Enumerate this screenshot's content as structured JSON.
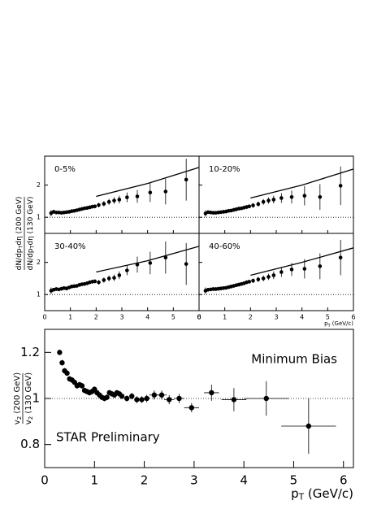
{
  "chart_data": [
    {
      "type": "scatter",
      "label": "0-5%",
      "ylabel_num": [
        {
          "text": "dN/dp"
        },
        {
          "text": "T",
          "sub": true
        },
        {
          "text": "dη (200 GeV)"
        }
      ],
      "ylabel_den": [
        {
          "text": "dN/dp"
        },
        {
          "text": "T",
          "sub": true
        },
        {
          "text": "dη (130 GeV)"
        }
      ],
      "xlim": [
        0,
        6
      ],
      "ylim": [
        0.5,
        2.9
      ],
      "yticks": [
        1,
        2
      ],
      "ref": 1,
      "x": [
        0.25,
        0.35,
        0.45,
        0.55,
        0.65,
        0.75,
        0.85,
        0.95,
        1.05,
        1.15,
        1.25,
        1.35,
        1.45,
        1.55,
        1.65,
        1.75,
        1.85,
        1.95,
        2.1,
        2.3,
        2.5,
        2.7,
        2.9,
        3.2,
        3.6,
        4.1,
        4.7,
        5.5
      ],
      "values": [
        1.13,
        1.17,
        1.15,
        1.15,
        1.14,
        1.15,
        1.16,
        1.17,
        1.19,
        1.2,
        1.22,
        1.24,
        1.26,
        1.28,
        1.29,
        1.31,
        1.33,
        1.34,
        1.38,
        1.42,
        1.48,
        1.52,
        1.55,
        1.62,
        1.65,
        1.77,
        1.8,
        2.17
      ],
      "yerr": [
        0.1,
        0.05,
        0.03,
        0.03,
        0.03,
        0.03,
        0.03,
        0.03,
        0.03,
        0.03,
        0.04,
        0.04,
        0.04,
        0.05,
        0.05,
        0.05,
        0.06,
        0.06,
        0.07,
        0.08,
        0.09,
        0.1,
        0.12,
        0.15,
        0.2,
        0.3,
        0.4,
        0.65
      ],
      "line": {
        "x": [
          2,
          4,
          6
        ],
        "values": [
          1.65,
          2.05,
          2.55
        ]
      }
    },
    {
      "type": "scatter",
      "label": "10-20%",
      "xlim": [
        0,
        6
      ],
      "ylim": [
        0.5,
        2.9
      ],
      "ref": 1,
      "x": [
        0.25,
        0.35,
        0.45,
        0.55,
        0.65,
        0.75,
        0.85,
        0.95,
        1.05,
        1.15,
        1.25,
        1.35,
        1.45,
        1.55,
        1.65,
        1.75,
        1.85,
        1.95,
        2.1,
        2.3,
        2.5,
        2.7,
        2.9,
        3.2,
        3.6,
        4.1,
        4.7,
        5.5
      ],
      "values": [
        1.12,
        1.16,
        1.15,
        1.14,
        1.14,
        1.15,
        1.16,
        1.17,
        1.18,
        1.2,
        1.21,
        1.23,
        1.25,
        1.27,
        1.28,
        1.3,
        1.32,
        1.34,
        1.37,
        1.41,
        1.48,
        1.52,
        1.55,
        1.6,
        1.63,
        1.67,
        1.63,
        1.98
      ],
      "yerr": [
        0.1,
        0.05,
        0.03,
        0.03,
        0.03,
        0.03,
        0.03,
        0.03,
        0.03,
        0.03,
        0.04,
        0.04,
        0.04,
        0.05,
        0.05,
        0.05,
        0.06,
        0.06,
        0.07,
        0.08,
        0.09,
        0.1,
        0.12,
        0.15,
        0.2,
        0.3,
        0.4,
        0.6
      ],
      "line": {
        "x": [
          2,
          4,
          6
        ],
        "values": [
          1.6,
          2.0,
          2.5
        ]
      }
    },
    {
      "type": "scatter",
      "label": "30-40%",
      "xlim": [
        0,
        6
      ],
      "ylim": [
        0.5,
        2.9
      ],
      "xticks": [
        0,
        1,
        2,
        3,
        4,
        5,
        6
      ],
      "yticks": [
        1,
        2
      ],
      "ref": 1,
      "x": [
        0.25,
        0.35,
        0.45,
        0.55,
        0.65,
        0.75,
        0.85,
        0.95,
        1.05,
        1.15,
        1.25,
        1.35,
        1.45,
        1.55,
        1.65,
        1.75,
        1.85,
        1.95,
        2.1,
        2.3,
        2.5,
        2.7,
        2.9,
        3.2,
        3.6,
        4.1,
        4.7,
        5.5
      ],
      "values": [
        1.12,
        1.15,
        1.17,
        1.16,
        1.18,
        1.2,
        1.19,
        1.22,
        1.25,
        1.26,
        1.27,
        1.3,
        1.32,
        1.33,
        1.35,
        1.38,
        1.4,
        1.41,
        1.38,
        1.45,
        1.5,
        1.52,
        1.6,
        1.75,
        1.93,
        1.98,
        2.15,
        1.95
      ],
      "yerr": [
        0.1,
        0.05,
        0.03,
        0.03,
        0.03,
        0.03,
        0.03,
        0.03,
        0.03,
        0.03,
        0.04,
        0.04,
        0.04,
        0.05,
        0.05,
        0.05,
        0.06,
        0.06,
        0.07,
        0.08,
        0.09,
        0.1,
        0.12,
        0.15,
        0.25,
        0.35,
        0.5,
        0.65
      ],
      "line": {
        "x": [
          2,
          4,
          6
        ],
        "values": [
          1.7,
          2.05,
          2.5
        ]
      }
    },
    {
      "type": "scatter",
      "label": "40-60%",
      "xlabel": [
        {
          "text": "p"
        },
        {
          "text": "T",
          "sub": true
        },
        {
          "text": " (GeV/c)"
        }
      ],
      "xlim": [
        0,
        6
      ],
      "ylim": [
        0.5,
        2.9
      ],
      "xticks": [
        0,
        1,
        2,
        3,
        4,
        5,
        6
      ],
      "ref": 1,
      "x": [
        0.25,
        0.35,
        0.45,
        0.55,
        0.65,
        0.75,
        0.85,
        0.95,
        1.05,
        1.15,
        1.25,
        1.35,
        1.45,
        1.55,
        1.65,
        1.75,
        1.85,
        1.95,
        2.1,
        2.3,
        2.5,
        2.7,
        2.9,
        3.2,
        3.6,
        4.1,
        4.7,
        5.5
      ],
      "values": [
        1.12,
        1.15,
        1.16,
        1.17,
        1.17,
        1.18,
        1.19,
        1.2,
        1.21,
        1.23,
        1.25,
        1.27,
        1.29,
        1.31,
        1.33,
        1.35,
        1.38,
        1.4,
        1.43,
        1.47,
        1.5,
        1.55,
        1.6,
        1.7,
        1.78,
        1.8,
        1.88,
        2.15
      ],
      "yerr": [
        0.1,
        0.05,
        0.03,
        0.03,
        0.03,
        0.03,
        0.03,
        0.03,
        0.03,
        0.03,
        0.04,
        0.04,
        0.04,
        0.05,
        0.05,
        0.05,
        0.06,
        0.06,
        0.07,
        0.08,
        0.09,
        0.1,
        0.12,
        0.15,
        0.2,
        0.3,
        0.4,
        0.55
      ],
      "line": {
        "x": [
          2,
          4,
          6
        ],
        "values": [
          1.6,
          2.0,
          2.45
        ]
      }
    },
    {
      "type": "scatter",
      "annotations": [
        "Minimum Bias",
        "STAR Preliminary"
      ],
      "xlabel": [
        {
          "text": "p"
        },
        {
          "text": "T",
          "sub": true
        },
        {
          "text": " (GeV/c)"
        }
      ],
      "ylabel_num": [
        {
          "text": "v"
        },
        {
          "text": "2",
          "sub": true
        },
        {
          "text": " (200 GeV)"
        }
      ],
      "ylabel_den": [
        {
          "text": "v"
        },
        {
          "text": "2",
          "sub": true
        },
        {
          "text": " (130 GeV)"
        }
      ],
      "xlim": [
        0,
        6.2
      ],
      "ylim": [
        0.7,
        1.3
      ],
      "xticks": [
        0,
        1,
        2,
        3,
        4,
        5,
        6
      ],
      "yticks": [
        0.8,
        1,
        1.2
      ],
      "ref": 1,
      "x": [
        0.3,
        0.35,
        0.4,
        0.45,
        0.5,
        0.55,
        0.6,
        0.65,
        0.7,
        0.75,
        0.8,
        0.85,
        0.9,
        0.95,
        1.0,
        1.05,
        1.1,
        1.15,
        1.2,
        1.25,
        1.3,
        1.35,
        1.4,
        1.45,
        1.5,
        1.55,
        1.65,
        1.75,
        1.85,
        1.95,
        2.05,
        2.2,
        2.35,
        2.5,
        2.7,
        2.95,
        3.35,
        3.8,
        4.45,
        5.3
      ],
      "values": [
        1.2,
        1.155,
        1.12,
        1.11,
        1.085,
        1.08,
        1.07,
        1.055,
        1.06,
        1.055,
        1.035,
        1.03,
        1.025,
        1.03,
        1.04,
        1.025,
        1.015,
        1.005,
        1.0,
        1.005,
        1.025,
        1.02,
        1.015,
        1.025,
        1.02,
        1.01,
        1.0,
        1.01,
        0.995,
        0.995,
        1.0,
        1.015,
        1.015,
        0.995,
        1.0,
        0.96,
        1.025,
        0.995,
        1.0,
        0.88
      ],
      "yerr": [
        0.012,
        0.012,
        0.012,
        0.012,
        0.012,
        0.012,
        0.012,
        0.012,
        0.012,
        0.012,
        0.012,
        0.012,
        0.012,
        0.012,
        0.012,
        0.012,
        0.012,
        0.012,
        0.012,
        0.012,
        0.012,
        0.012,
        0.012,
        0.012,
        0.012,
        0.012,
        0.013,
        0.014,
        0.015,
        0.015,
        0.016,
        0.02,
        0.02,
        0.02,
        0.02,
        0.02,
        0.035,
        0.05,
        0.075,
        0.12
      ],
      "xerr": [
        0.025,
        0.025,
        0.025,
        0.025,
        0.025,
        0.025,
        0.025,
        0.025,
        0.025,
        0.025,
        0.025,
        0.025,
        0.025,
        0.025,
        0.025,
        0.025,
        0.025,
        0.025,
        0.025,
        0.025,
        0.025,
        0.025,
        0.025,
        0.025,
        0.025,
        0.025,
        0.05,
        0.05,
        0.05,
        0.05,
        0.05,
        0.1,
        0.1,
        0.1,
        0.1,
        0.15,
        0.15,
        0.25,
        0.45,
        0.55
      ]
    }
  ]
}
